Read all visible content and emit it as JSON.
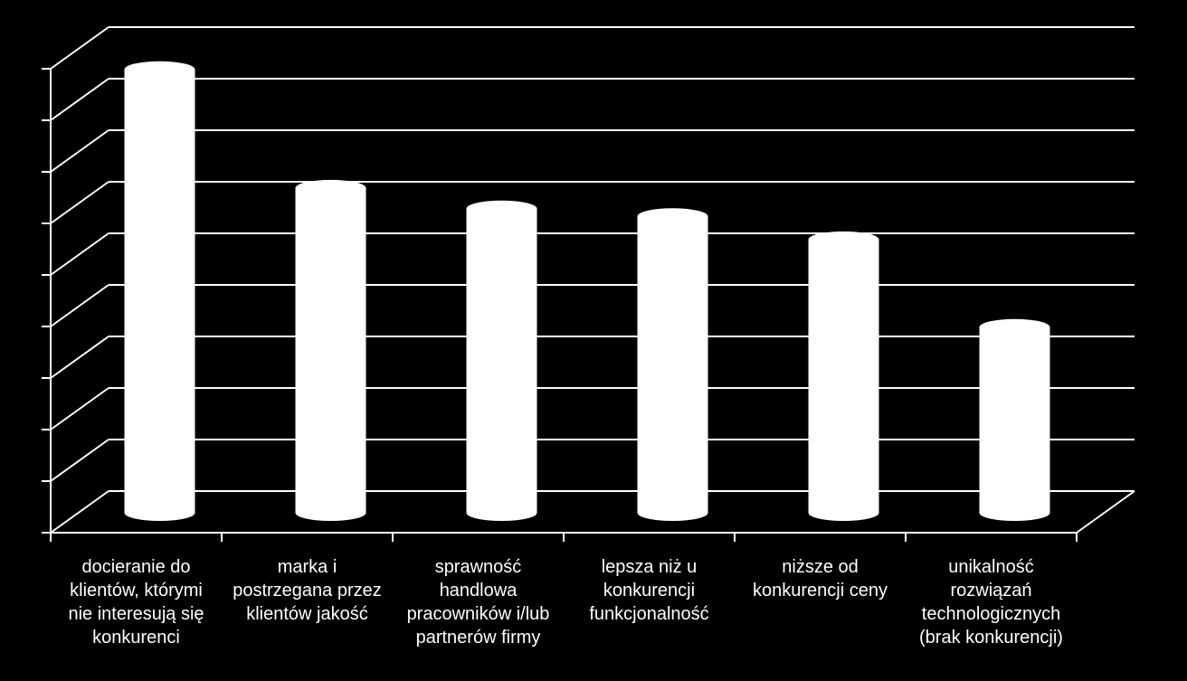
{
  "chart_data": {
    "type": "bar",
    "style": "3d-cylinder",
    "title": "",
    "xlabel": "",
    "ylabel": "",
    "y_tick_labels_shown": false,
    "ylim": [
      0,
      9
    ],
    "grid": true,
    "legend": "none",
    "categories": [
      "docieranie do klientów, którymi nie interesują się konkurenci",
      "marka i postrzegana przez klientów jakość",
      "sprawność handlowa pracowników i/lub partnerów firmy",
      "lepsza niż u konkurencji funkcjonalność",
      "niższe od konkurencji ceny",
      "unikalność rozwiązań technologicznych (brak konkurencji)"
    ],
    "category_lines": [
      [
        "docieranie do",
        "klientów, którymi",
        "nie interesują się",
        "konkurenci"
      ],
      [
        "marka i",
        "postrzegana przez",
        "klientów jakość"
      ],
      [
        "sprawność",
        "handlowa",
        "pracowników i/lub",
        "partnerów firmy"
      ],
      [
        "lepsza niż u",
        "konkurencji",
        "funkcjonalność"
      ],
      [
        "niższe od",
        "konkurencji ceny"
      ],
      [
        "unikalność",
        "rozwiązań",
        "technologicznych",
        "(brak konkurencji)"
      ]
    ],
    "values": [
      8.6,
      6.3,
      5.9,
      5.75,
      5.3,
      3.6
    ],
    "colors": {
      "background": "#000000",
      "bar": "#ffffff",
      "grid": "#ffffff",
      "text": "#ffffff"
    }
  }
}
